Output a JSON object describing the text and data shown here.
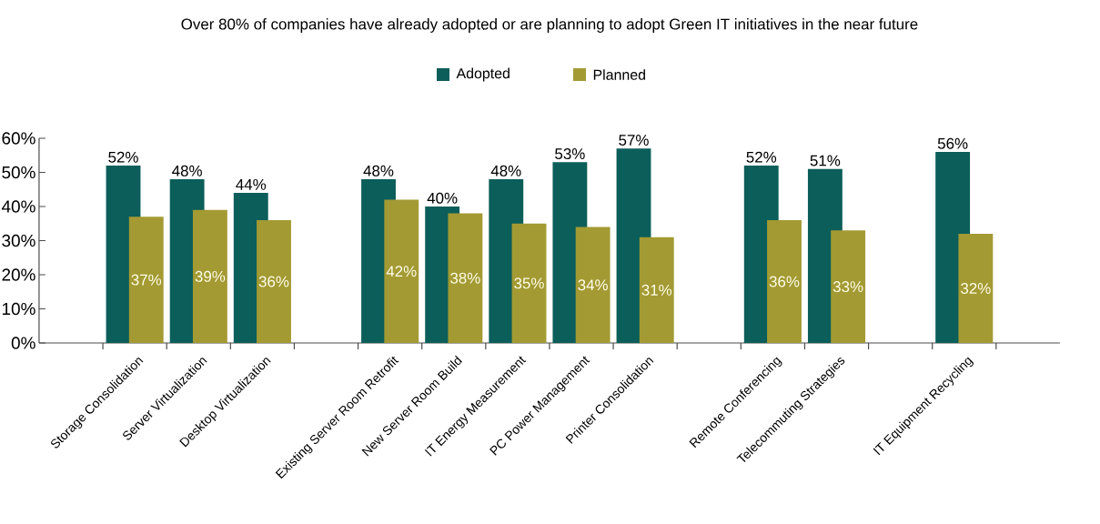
{
  "chart_data": {
    "type": "bar",
    "title": "Over 80% of companies have already adopted or are planning to adopt  Green IT initiatives in the near future",
    "categories": [
      null,
      "Storage Consolidation",
      "Server Virtualization",
      "Desktop Virtualization",
      null,
      "Existing Server Room Retrofit",
      "New Server Room Build",
      "IT Energy Measurement",
      "PC Power Management",
      "Printer Consolidation",
      null,
      "Remote Conferencing",
      "Telecommuting Strategies",
      null,
      "IT Equipment Recycling",
      null
    ],
    "series": [
      {
        "name": "Adopted",
        "color": "#0b5e5a",
        "values": [
          null,
          52,
          48,
          44,
          null,
          48,
          40,
          48,
          53,
          57,
          null,
          52,
          51,
          null,
          56,
          null
        ],
        "value_labels": [
          null,
          "52%",
          "48%",
          "44%",
          null,
          "48%",
          "40%",
          "48%",
          "53%",
          "57%",
          null,
          "52%",
          "51%",
          null,
          "56%",
          null
        ]
      },
      {
        "name": "Planned",
        "color": "#a39a33",
        "values": [
          null,
          37,
          39,
          36,
          null,
          42,
          38,
          35,
          34,
          31,
          null,
          36,
          33,
          null,
          32,
          null
        ],
        "value_labels": [
          null,
          "37%",
          "39%",
          "36%",
          null,
          "42%",
          "38%",
          "35%",
          "34%",
          "31%",
          null,
          "36%",
          "33%",
          null,
          "32%",
          null
        ]
      }
    ],
    "ylim": [
      0,
      60
    ],
    "yticks": [
      {
        "value": 0,
        "label": "0%"
      },
      {
        "value": 10,
        "label": "10%"
      },
      {
        "value": 20,
        "label": "20%"
      },
      {
        "value": 30,
        "label": "30%"
      },
      {
        "value": 40,
        "label": "40%"
      },
      {
        "value": 50,
        "label": "50%"
      },
      {
        "value": 60,
        "label": "60%"
      }
    ],
    "legend": "top",
    "grid": false
  }
}
